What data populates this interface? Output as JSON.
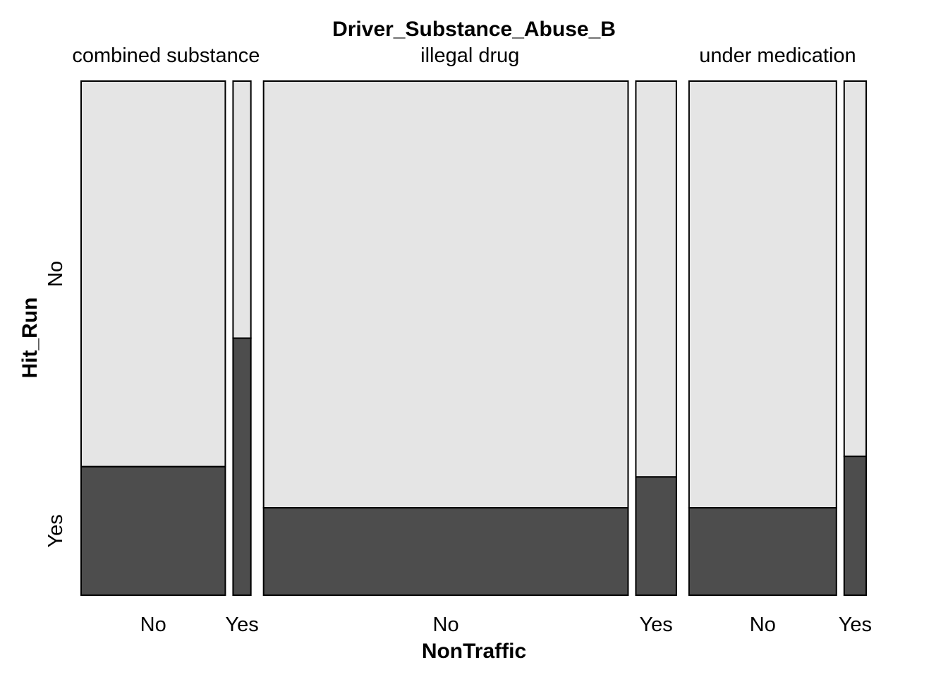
{
  "chart_data": {
    "type": "mosaic",
    "title": "Driver_Substance_Abuse_B",
    "xlabel": "NonTraffic",
    "ylabel": "Hit_Run",
    "y_levels": [
      "No",
      "Yes"
    ],
    "groups": [
      {
        "name": "combined substance",
        "share": 0.22,
        "bars": [
          {
            "label": "No",
            "share": 0.89,
            "yes_fraction": 0.25
          },
          {
            "label": "Yes",
            "share": 0.11,
            "yes_fraction": 0.5
          }
        ]
      },
      {
        "name": "illegal drug",
        "share": 0.55,
        "bars": [
          {
            "label": "No",
            "share": 0.9,
            "yes_fraction": 0.17
          },
          {
            "label": "Yes",
            "share": 0.1,
            "yes_fraction": 0.23
          }
        ]
      },
      {
        "name": "under medication",
        "share": 0.23,
        "bars": [
          {
            "label": "No",
            "share": 0.87,
            "yes_fraction": 0.17
          },
          {
            "label": "Yes",
            "share": 0.13,
            "yes_fraction": 0.27
          }
        ]
      }
    ]
  },
  "colors": {
    "no": "#e5e5e5",
    "yes": "#4d4d4d",
    "border": "#000000"
  }
}
